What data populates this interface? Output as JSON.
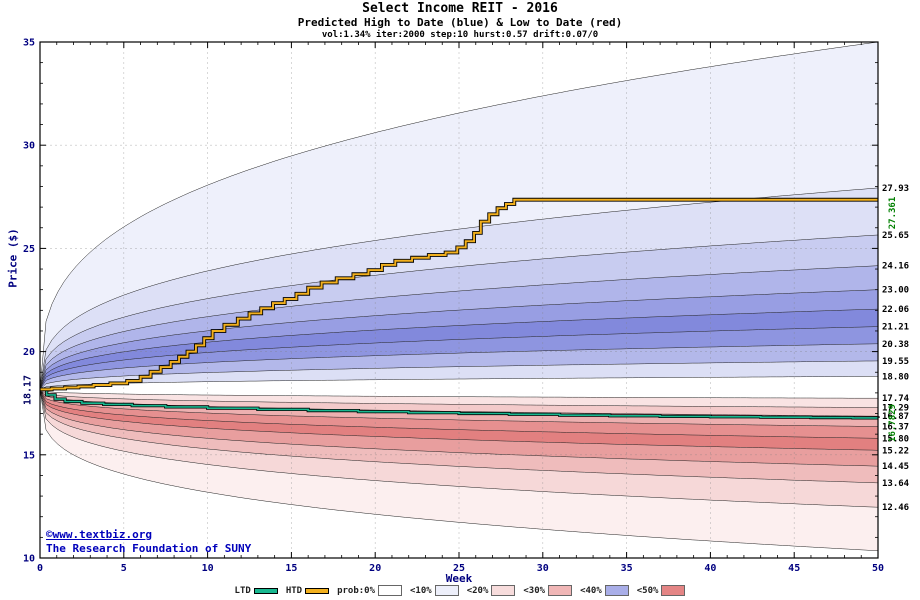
{
  "header": {
    "title": "Select Income REIT - 2016",
    "subtitle": "Predicted High to Date (blue) &  Low to Date (red)",
    "params": "vol:1.34% iter:2000 step:10 hurst:0.57 drift:0.07/0"
  },
  "watermark": {
    "line1": "©www.textbiz.org",
    "line2": "The Research Foundation of SUNY"
  },
  "chart_data": {
    "type": "area",
    "title": "Select Income REIT - 2016",
    "xlabel": "Week",
    "ylabel": "Price ($)",
    "xlim": [
      0,
      50
    ],
    "ylim": [
      10,
      35
    ],
    "xticks": [
      0,
      5,
      10,
      15,
      20,
      25,
      30,
      35,
      40,
      45,
      50
    ],
    "yticks": [
      10,
      15,
      20,
      25,
      30,
      35
    ],
    "grid": true,
    "start_price": 18.17,
    "start_label": "18.17",
    "high_band_edges": {
      "ends": [
        35.0,
        27.93,
        25.65,
        24.16,
        23.0,
        22.06,
        21.21,
        20.38,
        19.55,
        18.8
      ],
      "labels": [
        "",
        "27.93",
        "25.65",
        "24.16",
        "23.00",
        "22.06",
        "21.21",
        "20.38",
        "19.55",
        "18.80"
      ],
      "fills": [
        "#eef0fb",
        "#dde0f6",
        "#c8ccf0",
        "#b0b5ea",
        "#989ee3",
        "#8289dc",
        "#8e95e0",
        "#b3b8ea",
        "#dcdff5"
      ],
      "exponent": 0.33
    },
    "low_band_edges": {
      "ends": [
        17.74,
        17.29,
        16.87,
        16.37,
        15.8,
        15.22,
        14.45,
        13.64,
        12.46,
        10.35
      ],
      "labels": [
        "17.74",
        "17.29",
        "16.87",
        "16.37",
        "15.80",
        "15.22",
        "14.45",
        "13.64",
        "12.46",
        ""
      ],
      "fills": [
        "#f9e3e3",
        "#f3caca",
        "#edb0b0",
        "#e69090",
        "#e28080",
        "#e89e9e",
        "#efbcbc",
        "#f6d8d8",
        "#fcefef"
      ],
      "exponent": 0.28
    },
    "htd": {
      "name": "HTD",
      "color": "#f2b01e",
      "final_label": "27.361",
      "steps": [
        [
          0,
          18.17
        ],
        [
          0.7,
          18.21
        ],
        [
          1.5,
          18.26
        ],
        [
          2.3,
          18.31
        ],
        [
          3.2,
          18.38
        ],
        [
          4.2,
          18.46
        ],
        [
          5.2,
          18.58
        ],
        [
          6,
          18.78
        ],
        [
          6.6,
          19.02
        ],
        [
          7.2,
          19.25
        ],
        [
          7.8,
          19.5
        ],
        [
          8.3,
          19.75
        ],
        [
          8.8,
          20.0
        ],
        [
          9.3,
          20.3
        ],
        [
          9.8,
          20.65
        ],
        [
          10.3,
          21.0
        ],
        [
          11,
          21.3
        ],
        [
          11.8,
          21.6
        ],
        [
          12.5,
          21.85
        ],
        [
          13.2,
          22.1
        ],
        [
          13.9,
          22.35
        ],
        [
          14.6,
          22.55
        ],
        [
          15.3,
          22.8
        ],
        [
          16,
          23.1
        ],
        [
          16.8,
          23.35
        ],
        [
          17.7,
          23.55
        ],
        [
          18.7,
          23.75
        ],
        [
          19.6,
          23.95
        ],
        [
          20.4,
          24.2
        ],
        [
          21.2,
          24.4
        ],
        [
          22.2,
          24.55
        ],
        [
          23.2,
          24.68
        ],
        [
          24.2,
          24.8
        ],
        [
          24.9,
          25.05
        ],
        [
          25.4,
          25.35
        ],
        [
          25.9,
          25.75
        ],
        [
          26.3,
          26.3
        ],
        [
          26.8,
          26.65
        ],
        [
          27.3,
          26.95
        ],
        [
          27.8,
          27.15
        ],
        [
          28.3,
          27.361
        ],
        [
          50,
          27.361
        ]
      ]
    },
    "ltd": {
      "name": "LTD",
      "color": "#18b890",
      "final_label": "16.7829",
      "steps": [
        [
          0,
          18.17
        ],
        [
          0.4,
          17.9
        ],
        [
          0.9,
          17.7
        ],
        [
          1.5,
          17.58
        ],
        [
          2.5,
          17.5
        ],
        [
          3.8,
          17.44
        ],
        [
          5.5,
          17.38
        ],
        [
          7.5,
          17.32
        ],
        [
          10,
          17.26
        ],
        [
          13,
          17.2
        ],
        [
          16,
          17.14
        ],
        [
          19,
          17.09
        ],
        [
          22,
          17.04
        ],
        [
          25,
          17.0
        ],
        [
          28,
          16.96
        ],
        [
          31,
          16.92
        ],
        [
          34,
          16.89
        ],
        [
          37,
          16.86
        ],
        [
          40,
          16.84
        ],
        [
          43,
          16.82
        ],
        [
          46,
          16.8
        ],
        [
          48.5,
          16.79
        ],
        [
          50,
          16.7829
        ]
      ]
    }
  },
  "legend": {
    "items": [
      {
        "label": "LTD",
        "type": "line",
        "color": "#18b890"
      },
      {
        "label": "HTD",
        "type": "line",
        "color": "#f2b01e"
      },
      {
        "label": "prob:0%",
        "type": "box",
        "color": "#ffffff"
      },
      {
        "label": "<10%",
        "type": "box",
        "color": "#edeffa"
      },
      {
        "label": "<20%",
        "type": "box",
        "color": "#f7dcdc"
      },
      {
        "label": "<30%",
        "type": "box",
        "color": "#f0b6b6"
      },
      {
        "label": "<40%",
        "type": "box",
        "color": "#a9aee8"
      },
      {
        "label": "<50%",
        "type": "box",
        "color": "#e48585"
      }
    ]
  }
}
